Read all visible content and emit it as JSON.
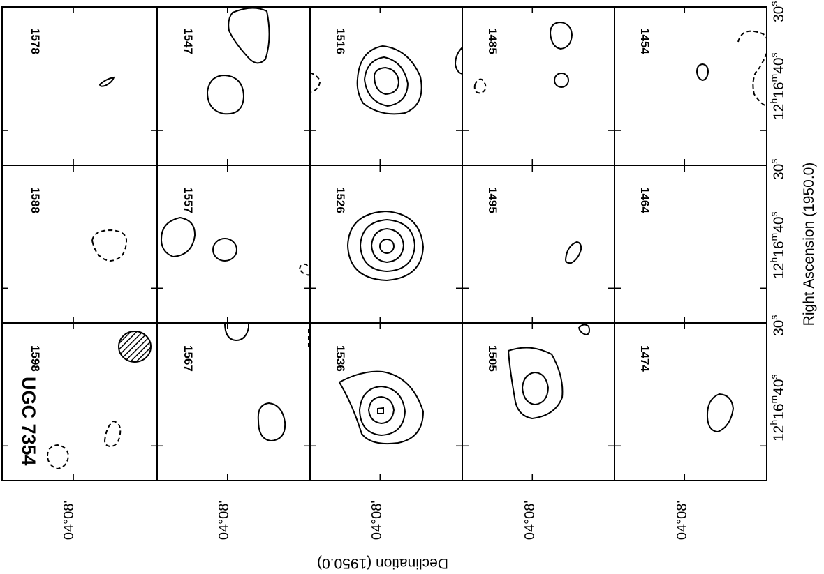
{
  "figure": {
    "object_name": "UGC 7354",
    "beam_icon": "hatched-beam-ellipse",
    "dec_label": "Declination (1950.0)",
    "ra_label": "Right Ascension (1950.0)",
    "dec_tick": "04°08'",
    "ra_ticks": [
      {
        "h": "12",
        "m": "16",
        "s": "40"
      },
      {
        "s": "30"
      }
    ],
    "panels": [
      {
        "velocity": "1598",
        "row": 0,
        "col": 0
      },
      {
        "velocity": "1588",
        "row": 0,
        "col": 1
      },
      {
        "velocity": "1578",
        "row": 0,
        "col": 2
      },
      {
        "velocity": "1567",
        "row": 1,
        "col": 0
      },
      {
        "velocity": "1557",
        "row": 1,
        "col": 1
      },
      {
        "velocity": "1547",
        "row": 1,
        "col": 2
      },
      {
        "velocity": "1536",
        "row": 2,
        "col": 0
      },
      {
        "velocity": "1526",
        "row": 2,
        "col": 1
      },
      {
        "velocity": "1516",
        "row": 2,
        "col": 2
      },
      {
        "velocity": "1505",
        "row": 3,
        "col": 0
      },
      {
        "velocity": "1495",
        "row": 3,
        "col": 1
      },
      {
        "velocity": "1485",
        "row": 3,
        "col": 2
      },
      {
        "velocity": "1474",
        "row": 4,
        "col": 0
      },
      {
        "velocity": "1464",
        "row": 4,
        "col": 1
      },
      {
        "velocity": "1454",
        "row": 4,
        "col": 2
      }
    ]
  }
}
